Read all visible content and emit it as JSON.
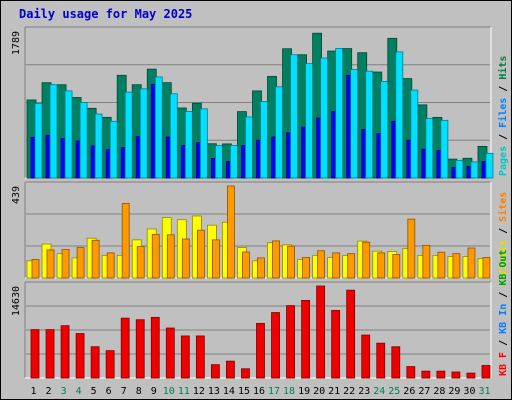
{
  "chart_data": {
    "type": "bar",
    "title": "Daily usage for May 2025",
    "categories": [
      "1",
      "2",
      "3",
      "4",
      "5",
      "6",
      "7",
      "8",
      "9",
      "10",
      "11",
      "12",
      "13",
      "14",
      "15",
      "16",
      "17",
      "18",
      "19",
      "20",
      "21",
      "22",
      "23",
      "24",
      "25",
      "26",
      "27",
      "28",
      "29",
      "30",
      "31"
    ],
    "weekend_days": [
      "3",
      "4",
      "10",
      "11",
      "17",
      "18",
      "24",
      "25",
      "31"
    ],
    "panels": [
      {
        "name": "top",
        "max_label": "1789",
        "ylim": [
          0,
          1789
        ],
        "axis_labels": [
          {
            "text": "Pages",
            "color": "#00c8c8"
          },
          {
            "text": "Files",
            "color": "#0080ff"
          },
          {
            "text": "Hits",
            "color": "#008040"
          }
        ],
        "series": [
          {
            "name": "Hits",
            "color": "#008060",
            "values": [
              950,
              1160,
              1135,
              980,
              848,
              738,
              1250,
              1135,
              1325,
              1160,
              852,
              910,
              417,
              415,
              808,
              1060,
              1237,
              1573,
              1500,
              1762,
              1545,
              1575,
              1525,
              1290,
              1700,
              1210,
              890,
              738,
              230,
              240,
              385
            ]
          },
          {
            "name": "Files",
            "color": "#0000ff",
            "values": [
              495,
              520,
              480,
              450,
              390,
              345,
              370,
              505,
              1140,
              500,
              395,
              430,
              238,
              200,
              395,
              460,
              500,
              550,
              620,
              730,
              810,
              1250,
              590,
              540,
              690,
              460,
              350,
              335,
              130,
              140,
              200
            ]
          },
          {
            "name": "Pages",
            "color": "#00e0ff",
            "values": [
              905,
              1135,
              1060,
              920,
              778,
              690,
              1045,
              1085,
              1230,
              1025,
              810,
              842,
              394,
              397,
              743,
              930,
              1110,
              1500,
              1392,
              1460,
              1575,
              1320,
              1300,
              1175,
              1535,
              1070,
              723,
              702,
              215,
              196,
              300
            ]
          }
        ]
      },
      {
        "name": "middle",
        "max_label": "439",
        "ylim": [
          0,
          439
        ],
        "axis_labels": [
          {
            "text": "Visits",
            "color": "#e0e000"
          },
          {
            "text": "Sites",
            "color": "#ff8000"
          }
        ],
        "series": [
          {
            "name": "Visits",
            "color": "#ffff00",
            "values": [
              82,
              162,
              116,
              96,
              190,
              108,
              108,
              182,
              234,
              288,
              278,
              296,
              252,
              266,
              145,
              82,
              168,
              158,
              88,
              108,
              98,
              108,
              176,
              128,
              126,
              140,
              108,
              108,
              102,
              102,
              92
            ]
          },
          {
            "name": "Sites",
            "color": "#ff9900",
            "values": [
              88,
              134,
              136,
              145,
              180,
              120,
              356,
              150,
              208,
              206,
              186,
              228,
              182,
              439,
              124,
              96,
              177,
              152,
              98,
              130,
              120,
              116,
              171,
              120,
              112,
              281,
              156,
              123,
              116,
              143,
              98
            ]
          }
        ]
      },
      {
        "name": "bottom",
        "max_label": "14630",
        "ylim": [
          0,
          14630
        ],
        "axis_labels": [
          {
            "text": "KB F",
            "color": "#ff0000"
          },
          {
            "text": "KB In",
            "color": "#0080ff"
          },
          {
            "text": "KB Out",
            "color": "#00a000"
          }
        ],
        "series": [
          {
            "name": "KB F",
            "color": "#ee0000",
            "values": [
              7700,
              7700,
              8320,
              7070,
              4970,
              4350,
              9520,
              9270,
              9640,
              7950,
              6690,
              6690,
              2120,
              2680,
              1470,
              8690,
              10410,
              11510,
              12340,
              14630,
              10750,
              13970,
              6830,
              5540,
              4970,
              1820,
              1090,
              1090,
              960,
              780,
              1990
            ]
          }
        ]
      }
    ]
  }
}
